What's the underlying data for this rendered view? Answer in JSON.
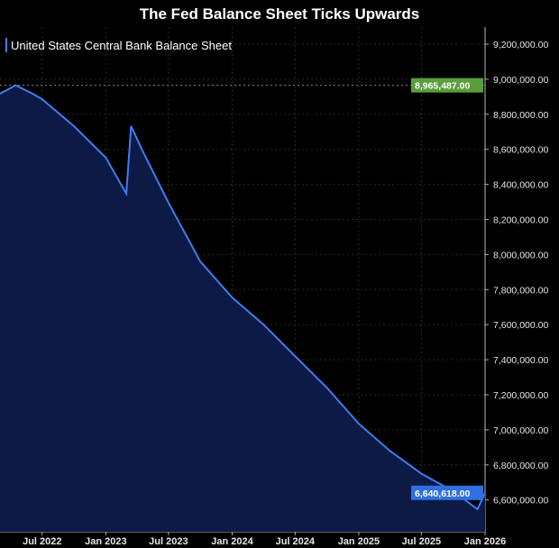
{
  "chart_data": {
    "type": "area",
    "title": "The Fed Balance Sheet Ticks Upwards",
    "series": [
      {
        "name": "United States Central Bank Balance Sheet",
        "color": "#3f7df0",
        "points": [
          [
            "2022-03-01",
            8917000
          ],
          [
            "2022-04-15",
            8965487
          ],
          [
            "2022-06-01",
            8920000
          ],
          [
            "2022-07-01",
            8886000
          ],
          [
            "2022-10-01",
            8732000
          ],
          [
            "2023-01-01",
            8552000
          ],
          [
            "2023-03-01",
            8347000
          ],
          [
            "2023-03-15",
            8733000
          ],
          [
            "2023-04-15",
            8600000
          ],
          [
            "2023-07-01",
            8295000
          ],
          [
            "2023-10-01",
            7960000
          ],
          [
            "2024-01-01",
            7755000
          ],
          [
            "2024-04-01",
            7600000
          ],
          [
            "2024-07-01",
            7420000
          ],
          [
            "2024-10-01",
            7240000
          ],
          [
            "2025-01-01",
            7035000
          ],
          [
            "2025-04-01",
            6880000
          ],
          [
            "2025-07-01",
            6750000
          ],
          [
            "2025-10-01",
            6650000
          ],
          [
            "2025-12-10",
            6547000
          ],
          [
            "2026-01-01",
            6640618
          ]
        ]
      }
    ],
    "x_ticks": [
      "Jul 2022",
      "Jan 2023",
      "Jul 2023",
      "Jan 2024",
      "Jul 2024",
      "Jan 2025",
      "Jul 2025",
      "Jan 2026"
    ],
    "x_tick_dates": [
      "2022-07-01",
      "2023-01-01",
      "2023-07-01",
      "2024-01-01",
      "2024-07-01",
      "2025-01-01",
      "2025-07-01",
      "2026-01-01"
    ],
    "y_ticks": [
      9200000,
      9000000,
      8800000,
      8600000,
      8400000,
      8200000,
      8000000,
      7800000,
      7600000,
      7400000,
      7200000,
      7000000,
      6800000,
      6600000
    ],
    "y_tick_labels": [
      "9,200,000.00",
      "9,000,000.00",
      "8,800,000.00",
      "8,600,000.00",
      "8,400,000.00",
      "8,200,000.00",
      "8,000,000.00",
      "7,800,000.00",
      "7,600,000.00",
      "7,400,000.00",
      "7,200,000.00",
      "7,000,000.00",
      "6,800,000.00",
      "6,600,000.00"
    ],
    "ylim": [
      6500000,
      9300000
    ],
    "xlim": [
      "2022-03-01",
      "2026-01-01"
    ],
    "grid": true,
    "legend": "top-left",
    "annotations": [
      {
        "label": "8,965,487.00",
        "value": 8965487,
        "color": "#5a9e3a"
      },
      {
        "label": "6,640,618.00",
        "value": 6640618,
        "color": "#2f6fe0"
      }
    ]
  }
}
